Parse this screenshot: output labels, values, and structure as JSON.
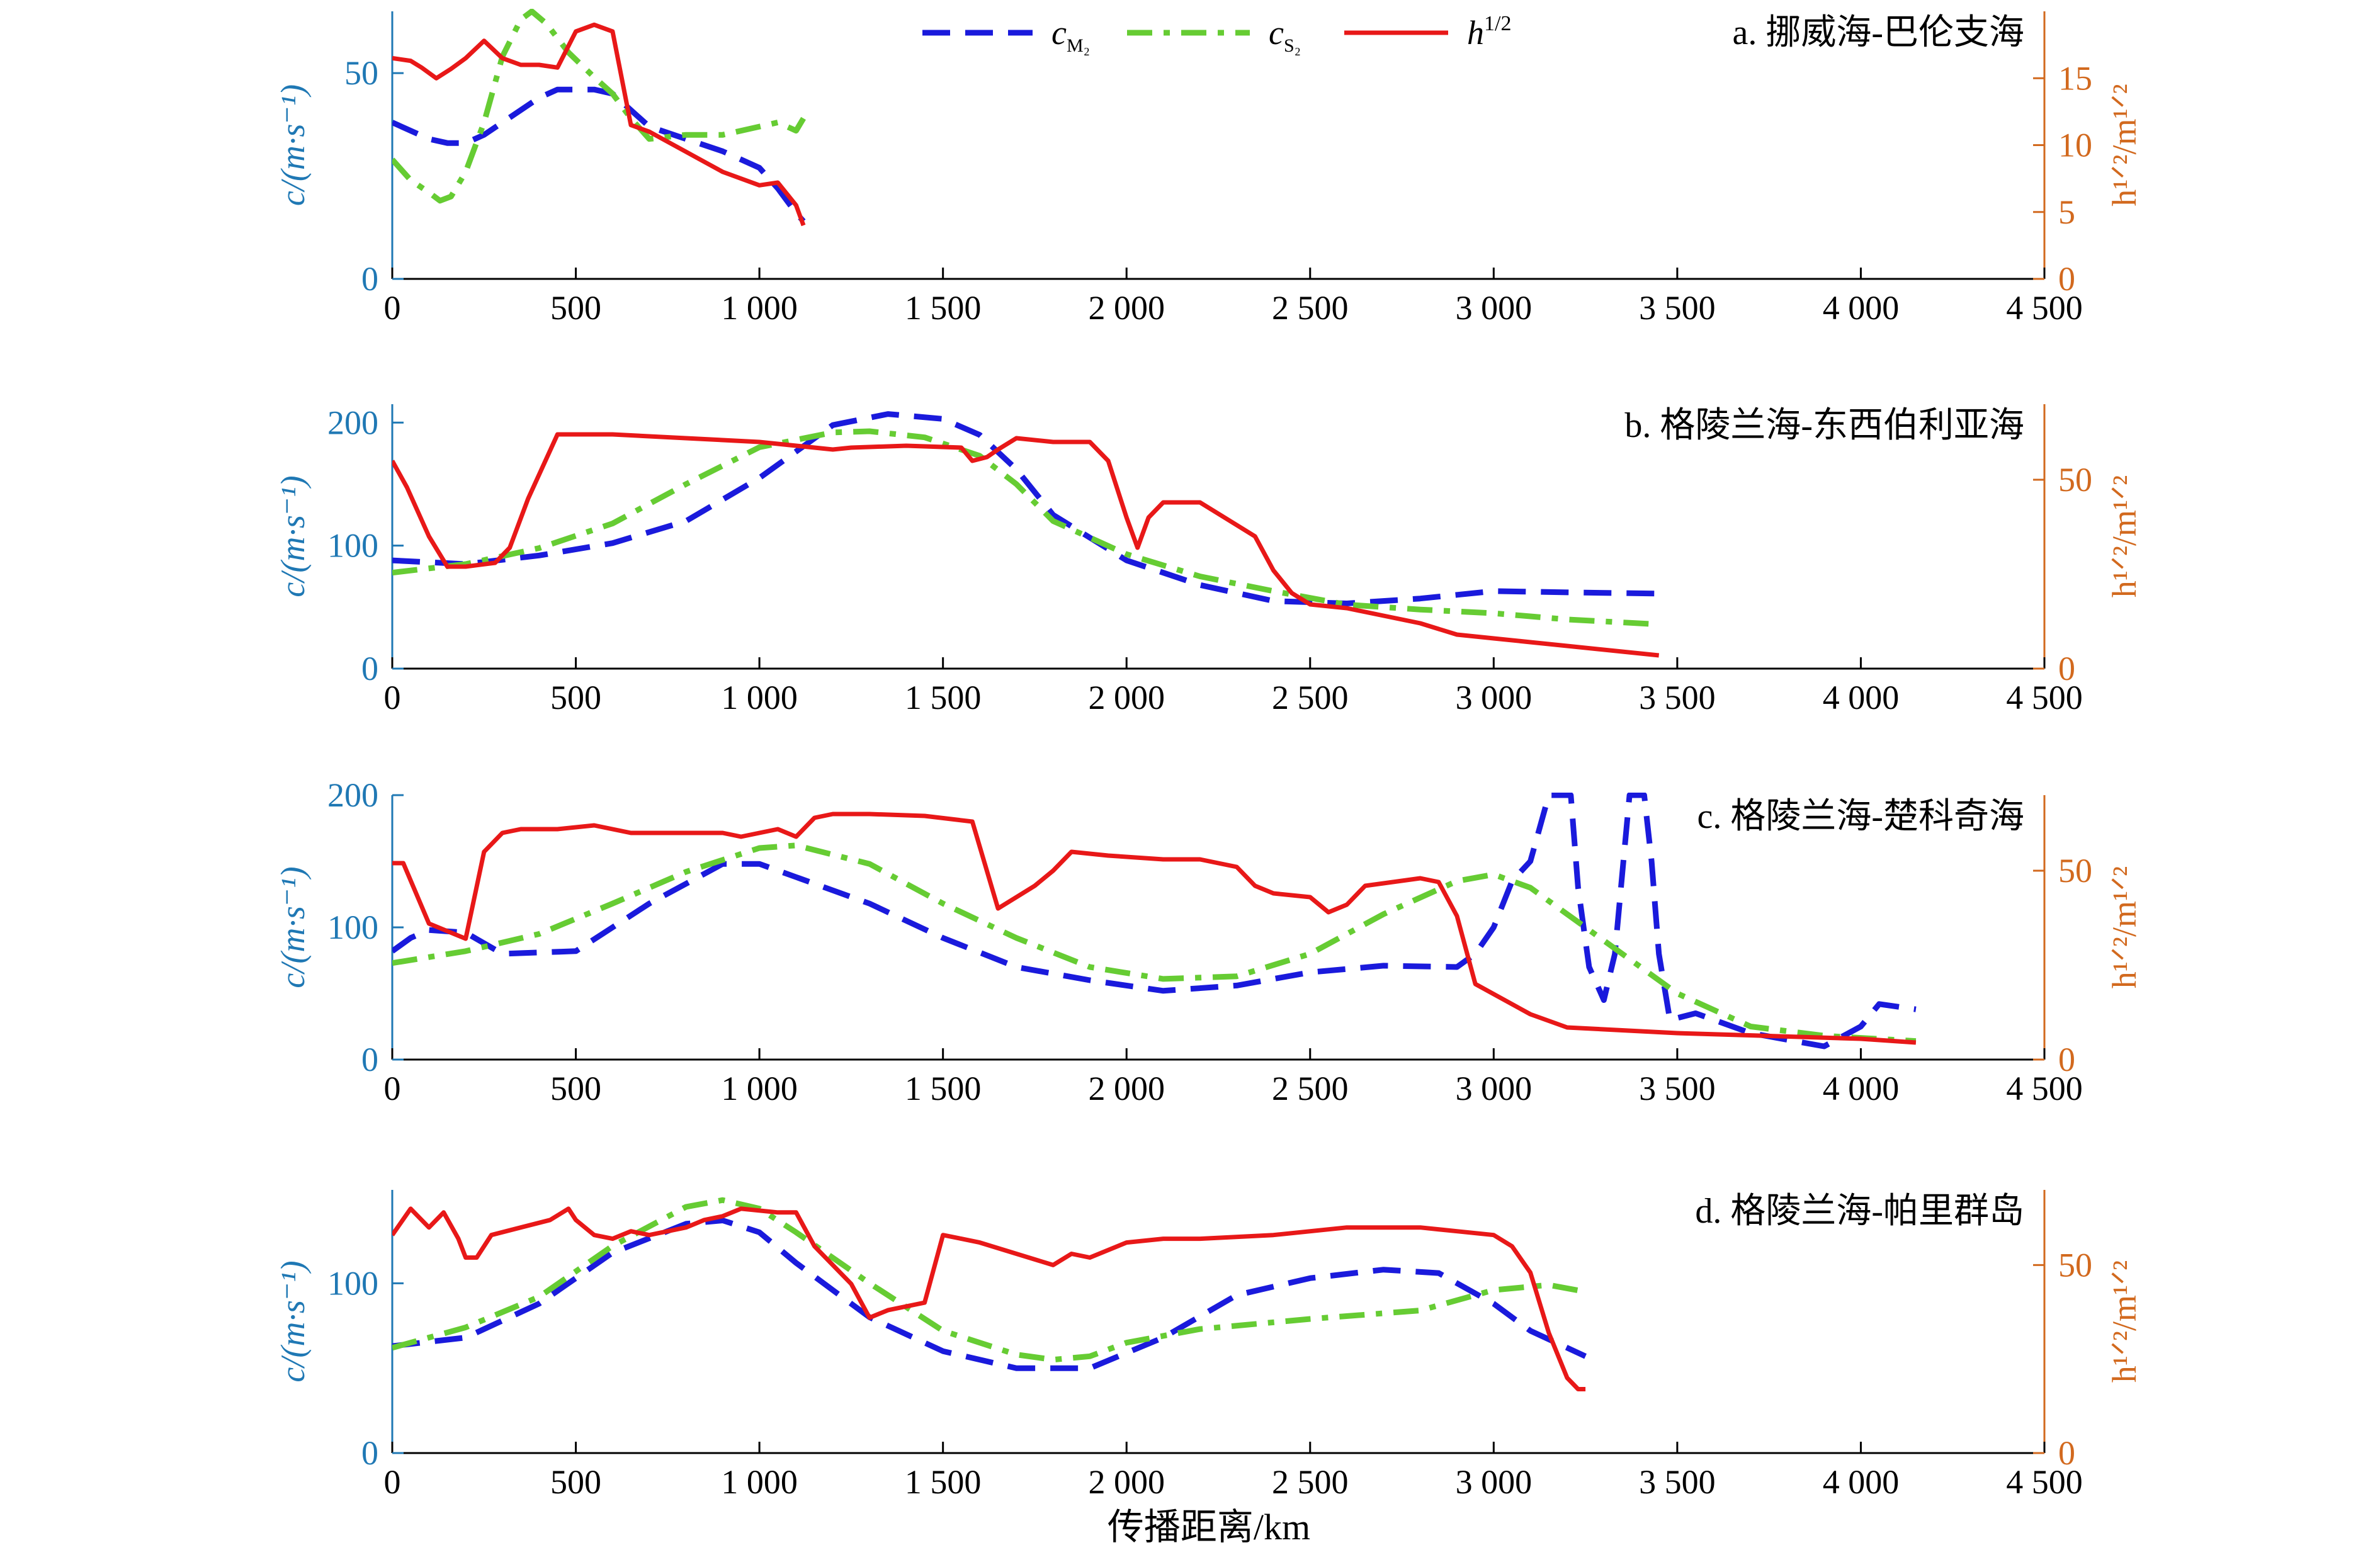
{
  "figure": {
    "xlabel": "传播距离/km",
    "legend": [
      {
        "key": "cM2",
        "label": "c",
        "sub": "M₂",
        "color": "#1a1adc",
        "style": "dashed"
      },
      {
        "key": "cS2",
        "label": "c",
        "sub": "S₂",
        "color": "#66cc33",
        "style": "dashdot"
      },
      {
        "key": "h",
        "label": "h",
        "sup": "1/2",
        "color": "#e81818",
        "style": "solid"
      }
    ],
    "colors": {
      "left_axis": "#1f78b4",
      "right_axis": "#d2691e"
    }
  },
  "chart_data": [
    {
      "type": "line",
      "title": "a. 挪威海-巴伦支海",
      "ylabel_left": "c/(m·s⁻¹)",
      "ylabel_right": "h¹ᐟ²/m¹ᐟ²",
      "xlim": [
        0,
        4500
      ],
      "xticks": [
        0,
        500,
        1000,
        1500,
        2000,
        2500,
        3000,
        3500,
        4000,
        4500
      ],
      "xtick_labels": [
        "0",
        "500",
        "1 000",
        "1 500",
        "2 000",
        "2 500",
        "3 000",
        "3 500",
        "4 000",
        "4 500"
      ],
      "ylim_left": [
        0,
        65
      ],
      "yticks_left": [
        0,
        50
      ],
      "ylim_right": [
        0,
        20
      ],
      "yticks_right": [
        0,
        5,
        10,
        15
      ],
      "series": [
        {
          "name": "cM2",
          "axis": "left",
          "x": [
            0,
            50,
            100,
            150,
            200,
            250,
            300,
            350,
            400,
            450,
            500,
            550,
            600,
            650,
            700,
            800,
            900,
            950,
            1000,
            1050,
            1100,
            1120
          ],
          "y": [
            38,
            36,
            34,
            33,
            33,
            35,
            38,
            41,
            44,
            46,
            46,
            46,
            45,
            41,
            37,
            34,
            31,
            29,
            27,
            22,
            16,
            14
          ]
        },
        {
          "name": "cS2",
          "axis": "left",
          "x": [
            0,
            50,
            100,
            130,
            160,
            200,
            250,
            300,
            350,
            380,
            420,
            480,
            550,
            600,
            650,
            700,
            800,
            900,
            1000,
            1050,
            1100,
            1120
          ],
          "y": [
            29,
            24,
            21,
            19,
            20,
            26,
            38,
            54,
            63,
            65,
            62,
            55,
            49,
            45,
            39,
            34,
            35,
            35,
            37,
            38,
            36,
            39
          ]
        },
        {
          "name": "h",
          "axis": "right",
          "x": [
            0,
            50,
            80,
            120,
            160,
            200,
            250,
            300,
            350,
            400,
            450,
            500,
            550,
            600,
            650,
            700,
            800,
            900,
            1000,
            1050,
            1100,
            1120
          ],
          "y": [
            16.5,
            16.3,
            15.8,
            15,
            15.7,
            16.5,
            17.8,
            16.5,
            16,
            16,
            15.8,
            18.5,
            19,
            18.5,
            11.5,
            11,
            9.5,
            8,
            7,
            7.2,
            5.5,
            4
          ]
        }
      ]
    },
    {
      "type": "line",
      "title": "b. 格陵兰海-东西伯利亚海",
      "ylabel_left": "c/(m·s⁻¹)",
      "ylabel_right": "h¹ᐟ²/m¹ᐟ²",
      "xlim": [
        0,
        4500
      ],
      "xticks": [
        0,
        500,
        1000,
        1500,
        2000,
        2500,
        3000,
        3500,
        4000,
        4500
      ],
      "xtick_labels": [
        "0",
        "500",
        "1 000",
        "1 500",
        "2 000",
        "2 500",
        "3 000",
        "3 500",
        "4 000",
        "4 500"
      ],
      "ylim_left": [
        0,
        215
      ],
      "yticks_left": [
        0,
        100,
        200
      ],
      "ylim_right": [
        0,
        70
      ],
      "yticks_right": [
        0,
        50
      ],
      "series": [
        {
          "name": "cM2",
          "axis": "left",
          "x": [
            0,
            200,
            400,
            600,
            800,
            1000,
            1200,
            1350,
            1500,
            1600,
            1700,
            1800,
            2000,
            2200,
            2400,
            2600,
            2800,
            3000,
            3200,
            3450
          ],
          "y": [
            88,
            85,
            92,
            102,
            120,
            155,
            198,
            207,
            203,
            190,
            162,
            125,
            88,
            68,
            55,
            53,
            57,
            63,
            62,
            61
          ]
        },
        {
          "name": "cS2",
          "axis": "left",
          "x": [
            0,
            200,
            400,
            600,
            800,
            1000,
            1200,
            1300,
            1450,
            1600,
            1700,
            1800,
            2000,
            2200,
            2400,
            2600,
            2800,
            3000,
            3200,
            3450
          ],
          "y": [
            78,
            85,
            98,
            118,
            150,
            180,
            192,
            193,
            188,
            173,
            150,
            120,
            93,
            75,
            63,
            52,
            48,
            45,
            40,
            36
          ]
        },
        {
          "name": "h",
          "axis": "right",
          "x": [
            0,
            40,
            100,
            150,
            200,
            280,
            320,
            370,
            450,
            600,
            800,
            1000,
            1200,
            1250,
            1400,
            1550,
            1580,
            1620,
            1650,
            1700,
            1800,
            1900,
            1950,
            2000,
            2030,
            2060,
            2100,
            2200,
            2300,
            2350,
            2400,
            2450,
            2500,
            2600,
            2700,
            2800,
            2900,
            3000,
            3200,
            3450
          ],
          "y": [
            55,
            48,
            35,
            27,
            27,
            28,
            32,
            45,
            62,
            62,
            61,
            60,
            58,
            58.5,
            59,
            58.5,
            55,
            56,
            58,
            61,
            60,
            60,
            55,
            40,
            32,
            40,
            44,
            44,
            38,
            35,
            26,
            20,
            17,
            16,
            14,
            12,
            9,
            8,
            6,
            3.5
          ]
        }
      ]
    },
    {
      "type": "line",
      "title": "c. 格陵兰海-楚科奇海",
      "ylabel_left": "c/(m·s⁻¹)",
      "ylabel_right": "h¹ᐟ²/m¹ᐟ²",
      "xlim": [
        0,
        4500
      ],
      "xticks": [
        0,
        500,
        1000,
        1500,
        2000,
        2500,
        3000,
        3500,
        4000,
        4500
      ],
      "xtick_labels": [
        "0",
        "500",
        "1 000",
        "1 500",
        "2 000",
        "2 500",
        "3 000",
        "3 500",
        "4 000",
        "4 500"
      ],
      "ylim_left": [
        0,
        200
      ],
      "yticks_left": [
        0,
        100,
        200
      ],
      "ylim_right": [
        0,
        70
      ],
      "yticks_right": [
        0,
        50
      ],
      "series": [
        {
          "name": "cM2",
          "axis": "left",
          "x": [
            0,
            50,
            100,
            200,
            300,
            500,
            700,
            900,
            1000,
            1100,
            1300,
            1500,
            1700,
            1900,
            2100,
            2300,
            2500,
            2700,
            2900,
            2950,
            3000,
            3050,
            3100,
            3150,
            3170,
            3190,
            3210,
            3230,
            3260,
            3300,
            3330,
            3350,
            3370,
            3390,
            3410,
            3430,
            3450,
            3480,
            3550,
            3700,
            3800,
            3900,
            4000,
            4050,
            4150
          ],
          "y": [
            82,
            92,
            98,
            96,
            80,
            82,
            118,
            148,
            148,
            138,
            118,
            92,
            70,
            60,
            52,
            56,
            66,
            71,
            70,
            80,
            100,
            135,
            150,
            200,
            200,
            200,
            200,
            130,
            70,
            45,
            80,
            140,
            200,
            200,
            200,
            150,
            80,
            30,
            35,
            20,
            15,
            10,
            25,
            42,
            38
          ]
        },
        {
          "name": "cS2",
          "axis": "left",
          "x": [
            0,
            200,
            400,
            600,
            800,
            1000,
            1100,
            1300,
            1500,
            1700,
            1900,
            2100,
            2300,
            2500,
            2700,
            2900,
            3000,
            3100,
            3300,
            3500,
            3700,
            3900,
            4150
          ],
          "y": [
            73,
            82,
            95,
            118,
            142,
            160,
            162,
            148,
            118,
            92,
            70,
            61,
            63,
            80,
            110,
            135,
            140,
            130,
            90,
            50,
            25,
            18,
            14
          ]
        },
        {
          "name": "h",
          "axis": "right",
          "x": [
            0,
            30,
            100,
            200,
            250,
            300,
            350,
            450,
            550,
            650,
            750,
            900,
            950,
            1000,
            1050,
            1100,
            1150,
            1200,
            1300,
            1450,
            1580,
            1650,
            1700,
            1750,
            1800,
            1850,
            1950,
            2100,
            2200,
            2300,
            2350,
            2400,
            2500,
            2550,
            2600,
            2650,
            2800,
            2850,
            2900,
            2950,
            3100,
            3200,
            3300,
            3500,
            4000,
            4150
          ],
          "y": [
            52,
            52,
            36,
            32,
            55,
            60,
            61,
            61,
            62,
            60,
            60,
            60,
            59,
            60,
            61,
            59,
            64,
            65,
            65,
            64.5,
            63,
            40,
            43,
            46,
            50,
            55,
            54,
            53,
            53,
            51,
            46,
            44,
            43,
            39,
            41,
            46,
            48,
            47,
            38,
            20,
            12,
            8.5,
            8,
            7,
            5.5,
            4.5
          ]
        }
      ]
    },
    {
      "type": "line",
      "title": "d. 格陵兰海-帕里群岛",
      "ylabel_left": "c/(m·s⁻¹)",
      "ylabel_right": "h¹ᐟ²/m¹ᐟ²",
      "xlim": [
        0,
        4500
      ],
      "xticks": [
        0,
        500,
        1000,
        1500,
        2000,
        2500,
        3000,
        3500,
        4000,
        4500
      ],
      "xtick_labels": [
        "0",
        "500",
        "1 000",
        "1 500",
        "2 000",
        "2 500",
        "3 000",
        "3 500",
        "4 000",
        "4 500"
      ],
      "ylim_left": [
        0,
        155
      ],
      "yticks_left": [
        0,
        100
      ],
      "ylim_right": [
        0,
        70
      ],
      "yticks_right": [
        0,
        50
      ],
      "series": [
        {
          "name": "cM2",
          "axis": "left",
          "x": [
            0,
            200,
            400,
            600,
            800,
            900,
            1000,
            1100,
            1300,
            1500,
            1700,
            1900,
            2100,
            2300,
            2500,
            2700,
            2850,
            3000,
            3100,
            3250
          ],
          "y": [
            63,
            68,
            88,
            118,
            135,
            137,
            130,
            112,
            80,
            60,
            50,
            50,
            68,
            93,
            103,
            108,
            106,
            88,
            72,
            57
          ]
        },
        {
          "name": "cS2",
          "axis": "left",
          "x": [
            0,
            200,
            400,
            600,
            800,
            900,
            1000,
            1100,
            1300,
            1500,
            1700,
            1800,
            1900,
            2000,
            2200,
            2500,
            2800,
            3000,
            3150,
            3250
          ],
          "y": [
            62,
            74,
            92,
            122,
            145,
            149,
            144,
            130,
            100,
            72,
            58,
            55,
            57,
            65,
            73,
            79,
            84,
            96,
            99,
            95
          ]
        },
        {
          "name": "h",
          "axis": "right",
          "x": [
            0,
            50,
            100,
            140,
            180,
            200,
            230,
            270,
            350,
            430,
            480,
            500,
            550,
            600,
            650,
            700,
            800,
            850,
            900,
            950,
            1050,
            1100,
            1150,
            1250,
            1300,
            1350,
            1450,
            1500,
            1550,
            1600,
            1700,
            1800,
            1850,
            1900,
            2000,
            2100,
            2200,
            2400,
            2600,
            2800,
            2900,
            3000,
            3050,
            3100,
            3150,
            3200,
            3230,
            3250
          ],
          "y": [
            58,
            65,
            60,
            64,
            57,
            52,
            52,
            58,
            60,
            62,
            65,
            62,
            58,
            57,
            59,
            58,
            60,
            62,
            63,
            65,
            64,
            64,
            55,
            45,
            36,
            38,
            40,
            58,
            57,
            56,
            53,
            50,
            53,
            52,
            56,
            57,
            57,
            58,
            60,
            60,
            59,
            58,
            55,
            48,
            32,
            20,
            17,
            17
          ]
        }
      ]
    }
  ]
}
